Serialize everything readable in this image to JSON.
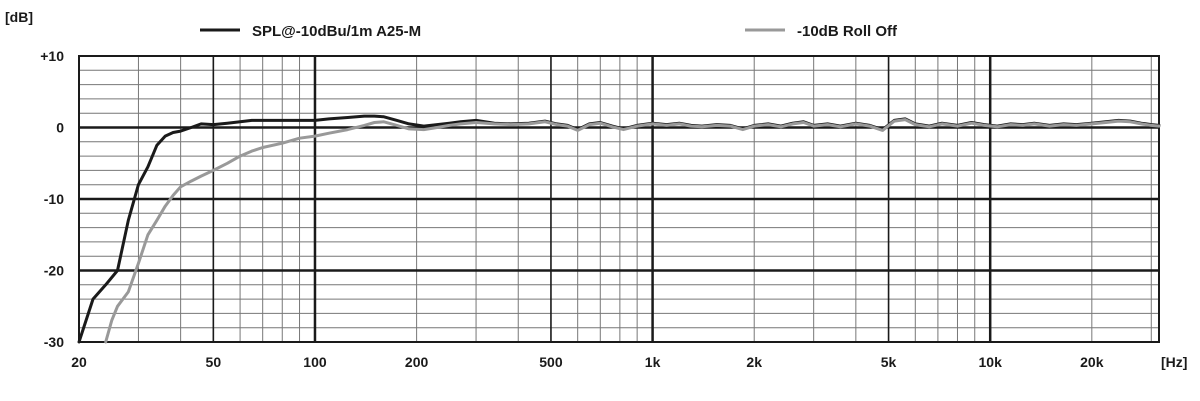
{
  "chart_data": {
    "type": "line",
    "ylabel": "[dB]",
    "xunit": "[Hz]",
    "xscale": "log",
    "xlim": [
      20,
      31623
    ],
    "ylim": [
      -30,
      10
    ],
    "grid": true,
    "legend_position": "top",
    "x_ticks": [
      {
        "value": 20,
        "label": "20"
      },
      {
        "value": 50,
        "label": "50"
      },
      {
        "value": 100,
        "label": "100"
      },
      {
        "value": 200,
        "label": "200"
      },
      {
        "value": 500,
        "label": "500"
      },
      {
        "value": 1000,
        "label": "1k"
      },
      {
        "value": 2000,
        "label": "2k"
      },
      {
        "value": 5000,
        "label": "5k"
      },
      {
        "value": 10000,
        "label": "10k"
      },
      {
        "value": 20000,
        "label": "20k"
      }
    ],
    "y_ticks": [
      {
        "value": 10,
        "label": "+10"
      },
      {
        "value": 0,
        "label": "0"
      },
      {
        "value": -10,
        "label": "-10"
      },
      {
        "value": -20,
        "label": "-20"
      },
      {
        "value": -30,
        "label": "-30"
      }
    ],
    "series": [
      {
        "name": "SPL@-10dBu/1m A25-M",
        "color": "#1a1a1a",
        "x": [
          20,
          22,
          24,
          26,
          28,
          30,
          32,
          34,
          36,
          38,
          40,
          43,
          46,
          50,
          55,
          60,
          65,
          70,
          80,
          90,
          100,
          110,
          125,
          140,
          150,
          160,
          175,
          190,
          210,
          230,
          250,
          270,
          300,
          340,
          380,
          430,
          480,
          520,
          560,
          600,
          650,
          700,
          760,
          820,
          900,
          1000,
          1100,
          1200,
          1300,
          1400,
          1550,
          1700,
          1850,
          2000,
          2200,
          2400,
          2600,
          2800,
          3000,
          3300,
          3600,
          4000,
          4400,
          4800,
          5200,
          5600,
          6000,
          6600,
          7200,
          8000,
          8800,
          9600,
          10500,
          11500,
          12500,
          13500,
          15000,
          16500,
          18000,
          20000,
          22000,
          24000,
          26000,
          28000,
          30000,
          31623
        ],
        "y": [
          -30,
          -24,
          -22,
          -20,
          -13,
          -8,
          -5.5,
          -2.5,
          -1.2,
          -0.7,
          -0.5,
          0,
          0.5,
          0.4,
          0.6,
          0.8,
          1,
          1,
          1,
          1,
          1,
          1.2,
          1.4,
          1.6,
          1.6,
          1.5,
          1,
          0.5,
          0.2,
          0.4,
          0.6,
          0.8,
          1,
          0.6,
          0.5,
          0.6,
          0.9,
          0.5,
          0.3,
          -0.3,
          0.5,
          0.7,
          0.2,
          -0.2,
          0.3,
          0.6,
          0.4,
          0.6,
          0.3,
          0.2,
          0.4,
          0.3,
          -0.2,
          0.3,
          0.5,
          0.2,
          0.6,
          0.8,
          0.3,
          0.5,
          0.2,
          0.6,
          0.3,
          -0.3,
          1,
          1.2,
          0.5,
          0.2,
          0.6,
          0.3,
          0.7,
          0.4,
          0.2,
          0.5,
          0.4,
          0.6,
          0.3,
          0.5,
          0.4,
          0.6,
          0.8,
          1,
          0.9,
          0.6,
          0.4,
          0.3
        ]
      },
      {
        "name": "-10dB Roll Off",
        "color": "#999999",
        "x": [
          24,
          25,
          26,
          28,
          30,
          32,
          34,
          36,
          38,
          40,
          43,
          46,
          50,
          55,
          60,
          65,
          70,
          80,
          90,
          100,
          110,
          125,
          140,
          150,
          160,
          175,
          190,
          210,
          230,
          250,
          270,
          300,
          340,
          380,
          430,
          480,
          520,
          560,
          600,
          650,
          700,
          760,
          820,
          900,
          1000,
          1100,
          1200,
          1300,
          1400,
          1550,
          1700,
          1850,
          2000,
          2200,
          2400,
          2600,
          2800,
          3000,
          3300,
          3600,
          4000,
          4400,
          4800,
          5200,
          5600,
          6000,
          6600,
          7200,
          8000,
          8800,
          9600,
          10500,
          11500,
          12500,
          13500,
          15000,
          16500,
          18000,
          20000,
          22000,
          24000,
          26000,
          28000,
          30000,
          31623
        ],
        "y": [
          -30,
          -27,
          -25,
          -23,
          -19,
          -15,
          -13,
          -11,
          -9.5,
          -8.3,
          -7.5,
          -6.8,
          -6,
          -5,
          -4,
          -3.3,
          -2.8,
          -2.2,
          -1.5,
          -1.2,
          -0.8,
          -0.3,
          0.3,
          0.7,
          0.8,
          0.3,
          -0.2,
          -0.3,
          0,
          0.3,
          0.5,
          0.7,
          0.5,
          0.4,
          0.5,
          0.8,
          0.4,
          0.2,
          -0.4,
          0.4,
          0.6,
          0.1,
          -0.3,
          0.2,
          0.5,
          0.3,
          0.5,
          0.2,
          0.1,
          0.3,
          0.2,
          -0.3,
          0.2,
          0.4,
          0.1,
          0.5,
          0.7,
          0.2,
          0.4,
          0.1,
          0.5,
          0.2,
          -0.4,
          0.9,
          1.1,
          0.4,
          0.1,
          0.5,
          0.2,
          0.6,
          0.3,
          0.1,
          0.4,
          0.3,
          0.5,
          0.2,
          0.4,
          0.3,
          0.5,
          0.7,
          0.9,
          0.8,
          0.5,
          0.3,
          0.2
        ]
      }
    ]
  }
}
